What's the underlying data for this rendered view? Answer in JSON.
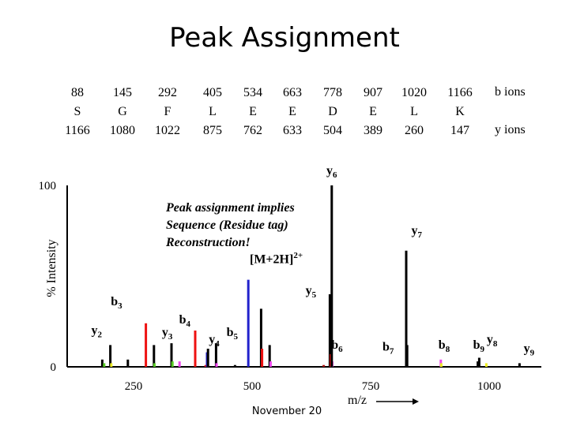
{
  "title": "Peak Assignment",
  "sequence": {
    "b_masses": [
      "88",
      "145",
      "292",
      "405",
      "534",
      "663",
      "778",
      "907",
      "1020",
      "1166"
    ],
    "b_underlined": [
      false,
      true,
      true,
      true,
      true,
      true,
      true,
      true,
      true,
      false
    ],
    "residues": [
      "S",
      "G",
      "F",
      "L",
      "E",
      "E",
      "D",
      "E",
      "L",
      "K"
    ],
    "y_masses": [
      "1166",
      "1080",
      "1022",
      "875",
      "762",
      "633",
      "504",
      "389",
      "260",
      "147"
    ],
    "y_underlined": [
      false,
      true,
      true,
      true,
      true,
      true,
      true,
      true,
      true,
      false
    ],
    "b_label": "b ions",
    "y_label": "y ions"
  },
  "annotation": {
    "lines": [
      "Peak assignment implies",
      "Sequence (Residue tag)",
      "Reconstruction!"
    ],
    "mh": "[M+2H]",
    "mh_sup": "2+"
  },
  "footer": "November 20",
  "chart_data": {
    "type": "bar",
    "xlabel": "m/z",
    "ylabel": "% Intensity",
    "xlim": [
      110,
      1110
    ],
    "ylim": [
      0,
      100
    ],
    "x_ticks": [
      250,
      500,
      750,
      1000
    ],
    "y_ticks": [
      0,
      100
    ],
    "colors": {
      "black": "#000000",
      "red": "#ee1111",
      "blue": "#2222cc",
      "green": "#55cc22",
      "magenta": "#ee44ee",
      "yellow": "#eeee22",
      "dark_red": "#aa1111"
    },
    "peaks": [
      {
        "mz": 184,
        "intensity": 4,
        "color": "black"
      },
      {
        "mz": 188,
        "intensity": 2,
        "color": "green"
      },
      {
        "mz": 201,
        "intensity": 12,
        "color": "black"
      },
      {
        "mz": 203,
        "intensity": 2,
        "color": "yellow"
      },
      {
        "mz": 238,
        "intensity": 4,
        "color": "black"
      },
      {
        "mz": 276,
        "intensity": 24,
        "color": "red"
      },
      {
        "mz": 293,
        "intensity": 12,
        "color": "black"
      },
      {
        "mz": 294,
        "intensity": 2,
        "color": "green"
      },
      {
        "mz": 330,
        "intensity": 13,
        "color": "black"
      },
      {
        "mz": 332,
        "intensity": 3,
        "color": "green"
      },
      {
        "mz": 347,
        "intensity": 3,
        "color": "magenta"
      },
      {
        "mz": 380,
        "intensity": 20,
        "color": "red"
      },
      {
        "mz": 402,
        "intensity": 1,
        "color": "red"
      },
      {
        "mz": 405,
        "intensity": 8,
        "color": "blue"
      },
      {
        "mz": 407,
        "intensity": 10,
        "color": "black"
      },
      {
        "mz": 424,
        "intensity": 13,
        "color": "black"
      },
      {
        "mz": 425,
        "intensity": 2,
        "color": "magenta"
      },
      {
        "mz": 464,
        "intensity": 1,
        "color": "black"
      },
      {
        "mz": 492,
        "intensity": 48,
        "color": "blue"
      },
      {
        "mz": 519,
        "intensity": 32,
        "color": "black"
      },
      {
        "mz": 521,
        "intensity": 10,
        "color": "red"
      },
      {
        "mz": 537,
        "intensity": 12,
        "color": "black"
      },
      {
        "mz": 539,
        "intensity": 3,
        "color": "magenta"
      },
      {
        "mz": 651,
        "intensity": 1,
        "color": "dark_red"
      },
      {
        "mz": 664,
        "intensity": 40,
        "color": "black"
      },
      {
        "mz": 666,
        "intensity": 7,
        "color": "red"
      },
      {
        "mz": 669,
        "intensity": 3,
        "color": "magenta"
      },
      {
        "mz": 668,
        "intensity": 100,
        "color": "black"
      },
      {
        "mz": 825,
        "intensity": 64,
        "color": "black"
      },
      {
        "mz": 827,
        "intensity": 12,
        "color": "black"
      },
      {
        "mz": 898,
        "intensity": 4,
        "color": "magenta"
      },
      {
        "mz": 899,
        "intensity": 2,
        "color": "yellow"
      },
      {
        "mz": 976,
        "intensity": 3,
        "color": "black"
      },
      {
        "mz": 979,
        "intensity": 5,
        "color": "black"
      },
      {
        "mz": 994,
        "intensity": 2,
        "color": "yellow"
      },
      {
        "mz": 1064,
        "intensity": 2,
        "color": "black"
      }
    ],
    "ion_labels": [
      {
        "text": "b",
        "sub": "3",
        "mz": 214,
        "intensity": 34
      },
      {
        "text": "y",
        "sub": "2",
        "mz": 172,
        "intensity": 18
      },
      {
        "text": "y",
        "sub": "3",
        "mz": 321,
        "intensity": 17
      },
      {
        "text": "b",
        "sub": "4",
        "mz": 358,
        "intensity": 24
      },
      {
        "text": "y",
        "sub": "4",
        "mz": 420,
        "intensity": 13
      },
      {
        "text": "b",
        "sub": "5",
        "mz": 458,
        "intensity": 17
      },
      {
        "text": "y",
        "sub": "5",
        "mz": 624,
        "intensity": 40
      },
      {
        "text": "b",
        "sub": "6",
        "mz": 679,
        "intensity": 10
      },
      {
        "text": "y",
        "sub": "6",
        "mz": 668,
        "intensity": 106
      },
      {
        "text": "b",
        "sub": "7",
        "mz": 787,
        "intensity": 9
      },
      {
        "text": "y",
        "sub": "7",
        "mz": 847,
        "intensity": 73
      },
      {
        "text": "b",
        "sub": "8",
        "mz": 905,
        "intensity": 10
      },
      {
        "text": "b",
        "sub": "9",
        "mz": 978,
        "intensity": 10
      },
      {
        "text": "y",
        "sub": "8",
        "mz": 1006,
        "intensity": 13
      },
      {
        "text": "y",
        "sub": "9",
        "mz": 1084,
        "intensity": 8
      }
    ]
  }
}
